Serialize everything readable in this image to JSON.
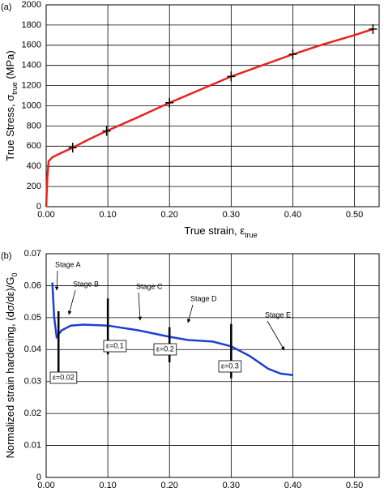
{
  "chart_data": [
    {
      "type": "line",
      "panel_label": "(a)",
      "x_label": [
        "True strain, ε",
        "true"
      ],
      "y_label": [
        "True Stress, σ",
        "true",
        " (MPa)"
      ],
      "xlim": [
        0,
        0.54
      ],
      "ylim": [
        0,
        2000
      ],
      "xticks": [
        {
          "value": 0,
          "label": "0.00"
        },
        {
          "value": 0.1,
          "label": "0.10"
        },
        {
          "value": 0.2,
          "label": "0.20"
        },
        {
          "value": 0.3,
          "label": "0.30"
        },
        {
          "value": 0.4,
          "label": "0.40"
        },
        {
          "value": 0.5,
          "label": "0.50"
        }
      ],
      "yticks": [
        0,
        200,
        400,
        600,
        800,
        1000,
        1200,
        1400,
        1600,
        1800,
        2000
      ],
      "grid": true,
      "series": [
        {
          "color": "#e8231e",
          "x": [
            0,
            0.002,
            0.004,
            0.01,
            0.02,
            0.043,
            0.07,
            0.098,
            0.15,
            0.2,
            0.25,
            0.3,
            0.35,
            0.4,
            0.45,
            0.5,
            0.53
          ],
          "values": [
            0,
            300,
            450,
            490,
            520,
            585,
            670,
            750,
            890,
            1030,
            1160,
            1290,
            1400,
            1510,
            1610,
            1700,
            1760
          ]
        },
        {
          "color": "#000000",
          "marker": "cross",
          "x": [
            0.043,
            0.098,
            0.2,
            0.3,
            0.4,
            0.53
          ],
          "values": [
            585,
            750,
            1030,
            1290,
            1510,
            1760
          ]
        }
      ]
    },
    {
      "type": "line",
      "panel_label": "(b)",
      "x_label": [
        "True strain, ε",
        "true"
      ],
      "y_label": [
        "Normalized strain hardening, (dσ/dε)/G",
        "0"
      ],
      "xlim": [
        0,
        0.54
      ],
      "ylim": [
        0,
        0.07
      ],
      "xticks": [
        {
          "value": 0,
          "label": "0.00"
        },
        {
          "value": 0.1,
          "label": "0.10"
        },
        {
          "value": 0.2,
          "label": "0.20"
        },
        {
          "value": 0.3,
          "label": "0.30"
        },
        {
          "value": 0.4,
          "label": "0.40"
        },
        {
          "value": 0.5,
          "label": "0.50"
        }
      ],
      "yticks": [
        0,
        0.01,
        0.02,
        0.03,
        0.04,
        0.05,
        0.06,
        0.07
      ],
      "grid": true,
      "series": [
        {
          "color": "#1f3fd0",
          "x": [
            0.01,
            0.013,
            0.017,
            0.025,
            0.04,
            0.06,
            0.1,
            0.15,
            0.2,
            0.23,
            0.27,
            0.3,
            0.33,
            0.36,
            0.38,
            0.4
          ],
          "values": [
            0.061,
            0.05,
            0.044,
            0.046,
            0.0475,
            0.0478,
            0.0475,
            0.046,
            0.044,
            0.043,
            0.0425,
            0.041,
            0.038,
            0.034,
            0.0325,
            0.032
          ]
        }
      ],
      "ranges": [
        {
          "x": 0.02,
          "low": 0.03,
          "high": 0.052
        },
        {
          "x": 0.1,
          "low": 0.0385,
          "high": 0.056
        },
        {
          "x": 0.2,
          "low": 0.036,
          "high": 0.047
        },
        {
          "x": 0.3,
          "low": 0.031,
          "high": 0.048
        }
      ],
      "stage_labels": [
        "Stage A",
        "Stage B",
        "Stage C",
        "Stage D",
        "Stage E"
      ],
      "strain_labels": [
        "ε=0.02",
        "ε=0.1",
        "ε=0.2",
        "ε=0.3"
      ]
    }
  ]
}
